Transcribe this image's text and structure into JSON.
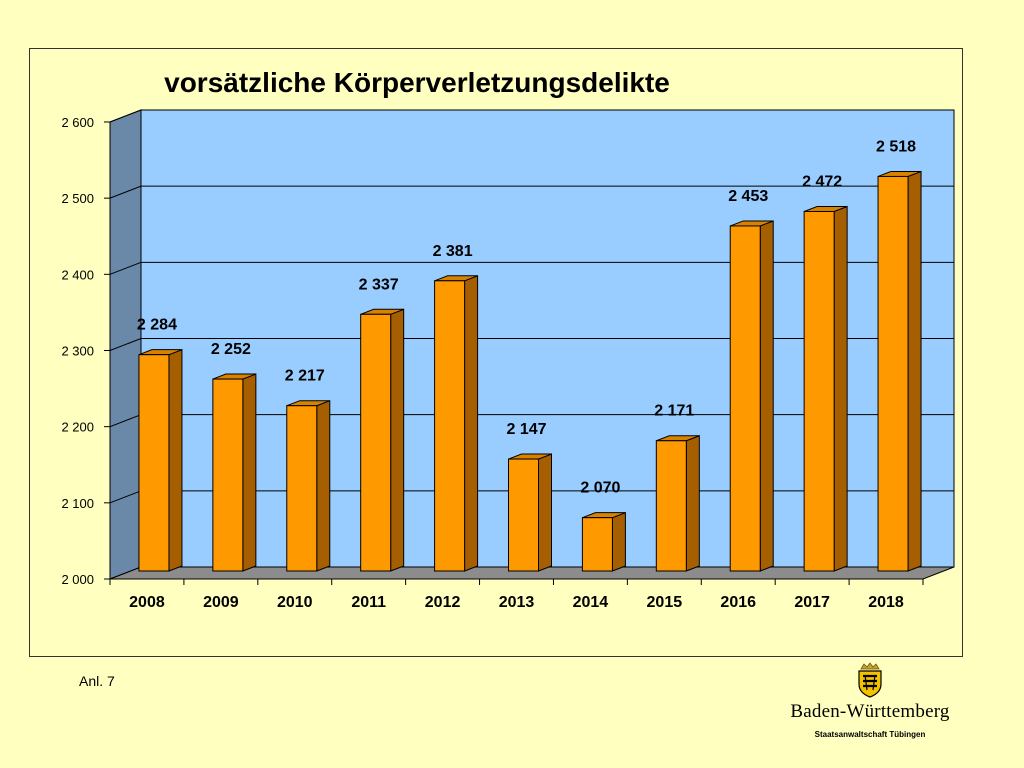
{
  "colors": {
    "background": "#ffffc0",
    "plot_back": "#99ccff",
    "plot_side": "#6a88a8",
    "plot_floor": "#8c8c8c",
    "bar_front": "#ff9900",
    "bar_side": "#a65f00",
    "bar_top": "#d98200"
  },
  "footer": {
    "annex_label": "Anl. 7",
    "logo_name": "Baden-Württemberg",
    "logo_subtitle": "Staatsanwaltschaft Tübingen",
    "logo_icon": "coat-of-arms-icon"
  },
  "chart_data": {
    "type": "bar",
    "title": "vorsätzliche Körperverletzungsdelikte",
    "xlabel": "",
    "ylabel": "",
    "categories": [
      "2008",
      "2009",
      "2010",
      "2011",
      "2012",
      "2013",
      "2014",
      "2015",
      "2016",
      "2017",
      "2018"
    ],
    "values": [
      2284,
      2252,
      2217,
      2337,
      2381,
      2147,
      2070,
      2171,
      2453,
      2472,
      2518
    ],
    "value_labels": [
      "2 284",
      "2 252",
      "2 217",
      "2 337",
      "2 381",
      "2 147",
      "2 070",
      "2 171",
      "2 453",
      "2 472",
      "2 518"
    ],
    "ylim": [
      2000,
      2600
    ],
    "yticks": [
      2000,
      2100,
      2200,
      2300,
      2400,
      2500,
      2600
    ],
    "ytick_labels": [
      "2 000",
      "2 100",
      "2 200",
      "2 300",
      "2 400",
      "2 500",
      "2 600"
    ],
    "grid": true,
    "legend": "none",
    "style": "3d"
  }
}
